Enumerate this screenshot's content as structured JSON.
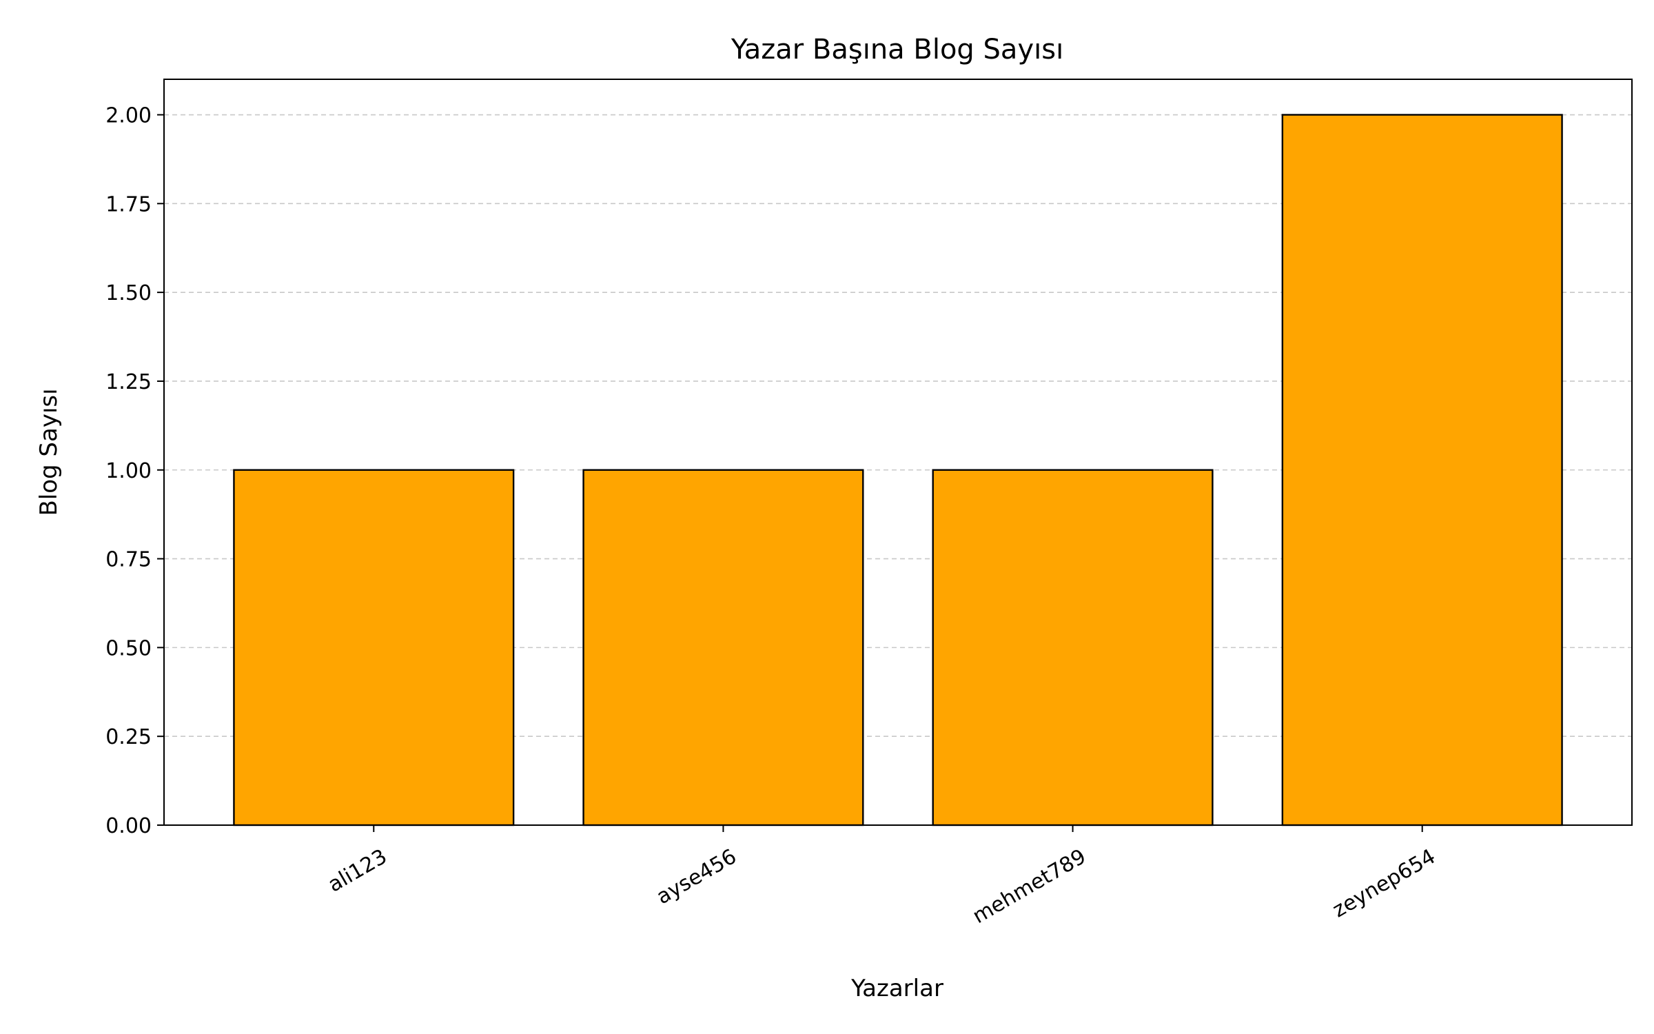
{
  "chart_data": {
    "type": "bar",
    "title": "Yazar Başına Blog Sayısı",
    "xlabel": "Yazarlar",
    "ylabel": "Blog Sayısı",
    "categories": [
      "ali123",
      "ayse456",
      "mehmet789",
      "zeynep654"
    ],
    "values": [
      1,
      1,
      1,
      2
    ],
    "ylim": [
      0,
      2.1
    ],
    "yticks": [
      "0.00",
      "0.25",
      "0.50",
      "0.75",
      "1.00",
      "1.25",
      "1.50",
      "1.75",
      "2.00"
    ],
    "grid": "y-axis dashed",
    "bar_color": "#FFA500",
    "bar_edge_color": "#000000"
  }
}
